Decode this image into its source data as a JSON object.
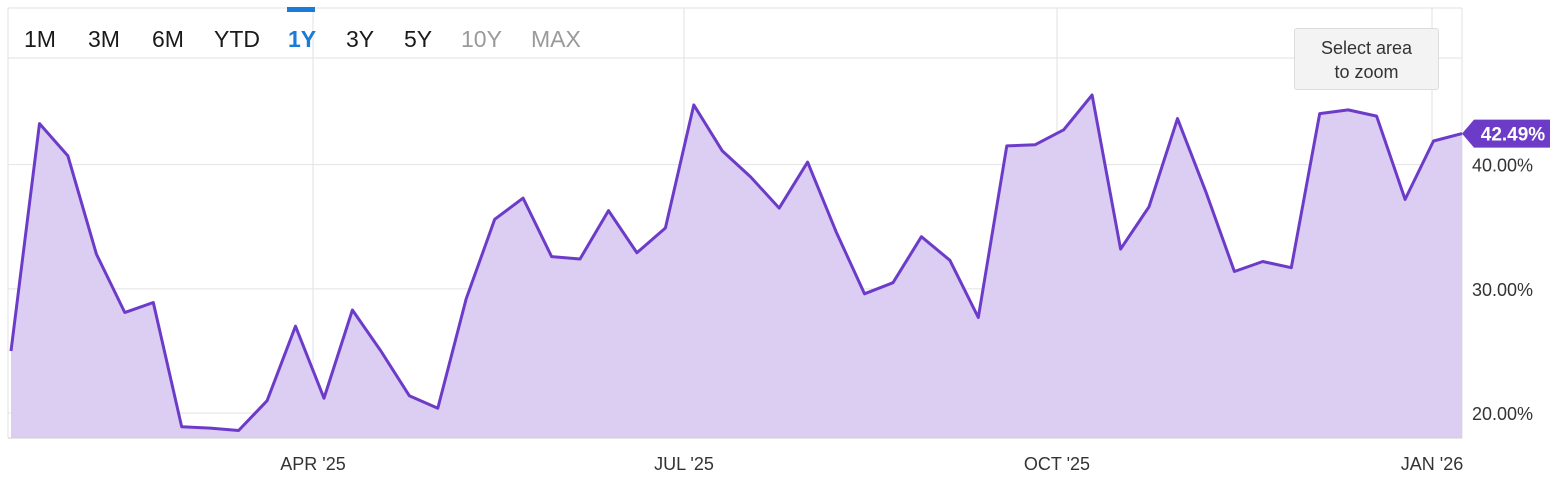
{
  "range_selector": {
    "buttons": [
      {
        "label": "1M",
        "state": "normal"
      },
      {
        "label": "3M",
        "state": "normal"
      },
      {
        "label": "6M",
        "state": "normal"
      },
      {
        "label": "YTD",
        "state": "normal"
      },
      {
        "label": "1Y",
        "state": "active"
      },
      {
        "label": "3Y",
        "state": "normal"
      },
      {
        "label": "5Y",
        "state": "normal"
      },
      {
        "label": "10Y",
        "state": "disabled"
      },
      {
        "label": "MAX",
        "state": "disabled"
      }
    ]
  },
  "zoom_hint": {
    "line1": "Select area",
    "line2": "to zoom"
  },
  "current_value_label": "42.49%",
  "colors": {
    "line": "#6c3cc9",
    "fill": "#dccdf3",
    "badge": "#6c3cc9",
    "active_range": "#1a7bd8",
    "grid": "#e2e2e2"
  },
  "chart_data": {
    "type": "area",
    "title": "",
    "xlabel": "",
    "ylabel": "",
    "ylim": [
      18.0,
      52.6
    ],
    "x_tick_labels": [
      "APR '25",
      "JUL '25",
      "OCT '25",
      "JAN '26"
    ],
    "y_tick_labels": [
      "20.00%",
      "30.00%",
      "40.00%"
    ],
    "y_ticks": [
      20,
      30,
      40
    ],
    "grid": true,
    "series": [
      {
        "values": [
          25.0,
          43.3,
          40.7,
          32.8,
          28.1,
          28.9,
          18.9,
          18.8,
          18.6,
          21.0,
          27.0,
          21.2,
          28.3,
          25.0,
          21.4,
          20.4,
          29.2,
          35.6,
          37.3,
          32.6,
          32.4,
          36.3,
          32.9,
          34.9,
          44.8,
          41.1,
          39.0,
          36.5,
          40.2,
          34.6,
          29.6,
          30.5,
          34.2,
          32.3,
          27.7,
          41.5,
          41.6,
          42.8,
          45.6,
          33.2,
          36.6,
          43.7,
          37.8,
          31.4,
          32.2,
          31.7,
          44.1,
          44.4,
          43.9,
          37.2,
          41.9,
          42.49
        ]
      }
    ]
  }
}
